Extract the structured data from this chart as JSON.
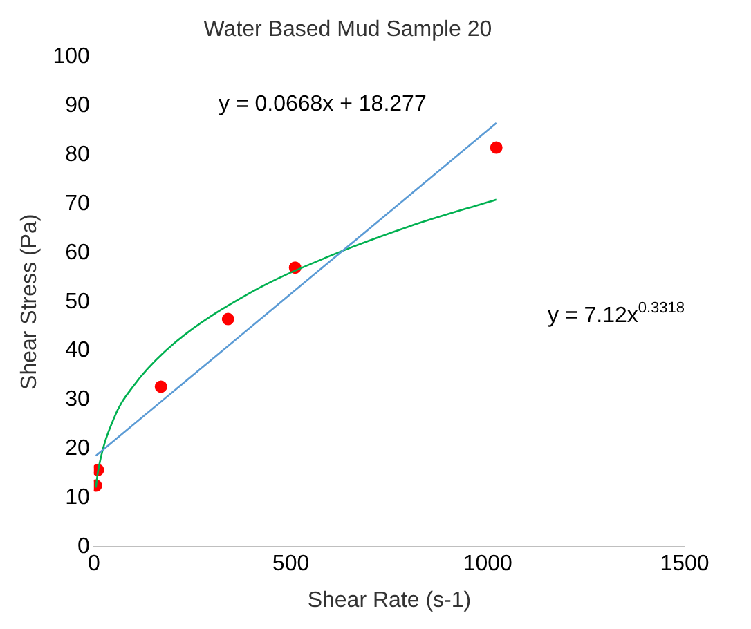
{
  "chart_data": {
    "type": "scatter",
    "title": "Water Based Mud Sample 20",
    "xlabel": "Shear Rate (s-1)",
    "ylabel": "Shear Stress (Pa)",
    "xlim": [
      0,
      1500
    ],
    "xticks": [
      0,
      500,
      1000,
      1500
    ],
    "ylim": [
      0,
      100
    ],
    "yticks": [
      0,
      10,
      20,
      30,
      40,
      50,
      60,
      70,
      80,
      90,
      100
    ],
    "grid": false,
    "legend": false,
    "marker": "circle",
    "annotations": [
      "y = 0.0668x + 18.277",
      "y = 7.12x$^{0.3318}$"
    ],
    "series": [
      {
        "type": "line",
        "color": "#5b9bd5",
        "x": [
          5.11,
          1022
        ],
        "values": [
          18.6,
          86.5
        ],
        "marker": "none"
      },
      {
        "type": "line",
        "color": "#00b050",
        "x": [
          5.11,
          10.22,
          50,
          100,
          200,
          400,
          600,
          800,
          1022
        ],
        "values": [
          12.1,
          15.3,
          26.1,
          32.8,
          41.3,
          52,
          59.4,
          65.4,
          70.9
        ],
        "marker": "none"
      },
      {
        "type": "scatter",
        "color": "#ff0000",
        "x": [
          5.11,
          10.22,
          170.3,
          340.6,
          510.9,
          1021.8
        ],
        "values": [
          12.5,
          15.7,
          32.7,
          46.5,
          57,
          81.5
        ]
      }
    ]
  }
}
